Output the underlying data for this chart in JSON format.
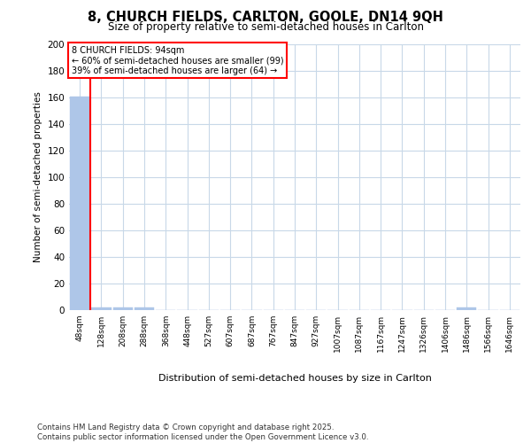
{
  "title1": "8, CHURCH FIELDS, CARLTON, GOOLE, DN14 9QH",
  "title2": "Size of property relative to semi-detached houses in Carlton",
  "xlabel": "Distribution of semi-detached houses by size in Carlton",
  "ylabel": "Number of semi-detached properties",
  "property_size": 94,
  "property_label": "8 CHURCH FIELDS: 94sqm",
  "pct_smaller": 60,
  "count_smaller": 99,
  "pct_larger": 39,
  "count_larger": 64,
  "annotation_smaller": "← 60% of semi-detached houses are smaller (99)",
  "annotation_larger": "39% of semi-detached houses are larger (64) →",
  "bin_labels": [
    "48sqm",
    "128sqm",
    "208sqm",
    "288sqm",
    "368sqm",
    "448sqm",
    "527sqm",
    "607sqm",
    "687sqm",
    "767sqm",
    "847sqm",
    "927sqm",
    "1007sqm",
    "1087sqm",
    "1167sqm",
    "1247sqm",
    "1326sqm",
    "1406sqm",
    "1486sqm",
    "1566sqm",
    "1646sqm"
  ],
  "bar_heights": [
    161,
    2,
    2,
    2,
    0,
    0,
    0,
    0,
    0,
    0,
    0,
    0,
    0,
    0,
    0,
    0,
    0,
    0,
    2,
    0,
    0
  ],
  "bar_color": "#aec6e8",
  "redline_x": 0.5,
  "ylim": [
    0,
    200
  ],
  "yticks": [
    0,
    20,
    40,
    60,
    80,
    100,
    120,
    140,
    160,
    180,
    200
  ],
  "background_color": "#ffffff",
  "grid_color": "#c8d8e8",
  "footer": "Contains HM Land Registry data © Crown copyright and database right 2025.\nContains public sector information licensed under the Open Government Licence v3.0."
}
